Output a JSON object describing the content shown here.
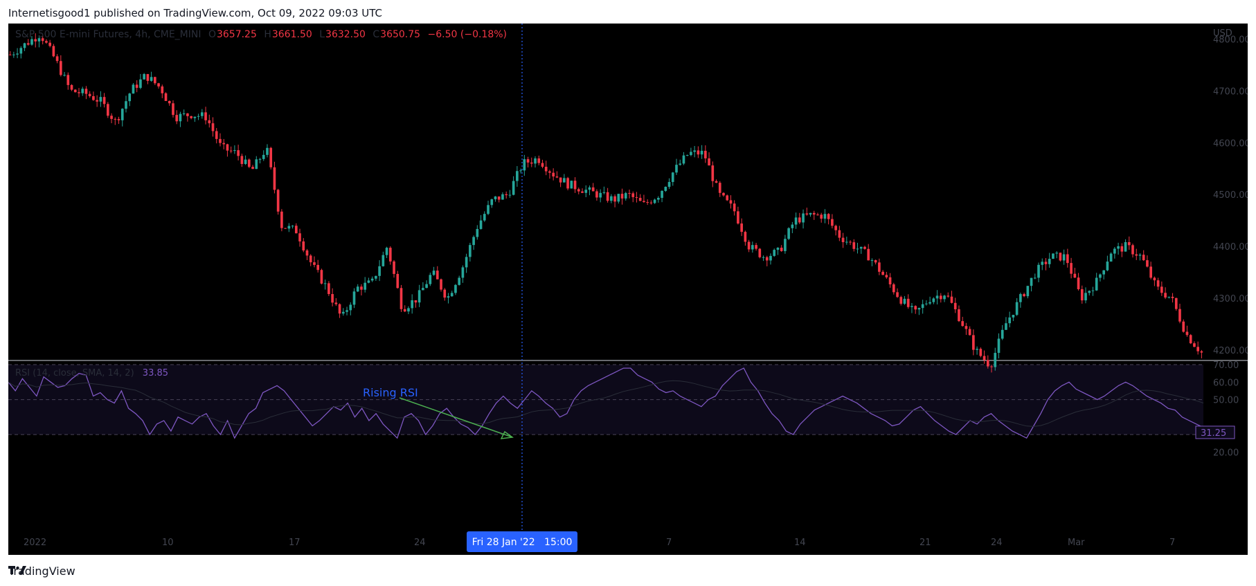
{
  "header": {
    "published": "Internetisgood1 published on TradingView.com, Oct 09, 2022 09:03 UTC"
  },
  "legend": {
    "symbol": "S&P 500 E-mini Futures, 4h, CME_MINI",
    "open_key": "O",
    "open": "3657.25",
    "high_key": "H",
    "high": "3661.50",
    "low_key": "L",
    "low": "3632.50",
    "close_key": "C",
    "close": "3650.75",
    "change": "−6.50 (−0.18%)"
  },
  "rsi_legend": {
    "label": "RSI (14, close, SMA, 14, 2)",
    "value": "33.85"
  },
  "crosshair_label": "Fri 28 Jan '22   15:00",
  "annotation": "Rising RSI",
  "footer": {
    "brand": "TradingView"
  },
  "colors": {
    "up": "#26a69a",
    "down": "#f23645",
    "rsi": "#7e57c2",
    "crosshair": "#2962ff",
    "annotation_text": "#2962ff",
    "arrow": "#4caf50"
  },
  "chart_data": [
    {
      "type": "candlestick",
      "currency": "USD",
      "ylim": [
        4180,
        4830
      ],
      "y_ticks": [
        "4800.00",
        "4700.00",
        "4600.00",
        "4500.00",
        "4400.00",
        "4300.00",
        "4200.00"
      ],
      "path_points": [
        4770,
        4790,
        4810,
        4760,
        4700,
        4695,
        4680,
        4640,
        4700,
        4730,
        4705,
        4650,
        4655,
        4650,
        4590,
        4580,
        4545,
        4590,
        4440,
        4430,
        4365,
        4320,
        4260,
        4320,
        4330,
        4400,
        4280,
        4300,
        4350,
        4300,
        4360,
        4440,
        4490,
        4500,
        4560,
        4570,
        4540,
        4520,
        4510,
        4500,
        4490,
        4500,
        4480,
        4500,
        4545,
        4580,
        4580,
        4500,
        4470,
        4400,
        4380,
        4390,
        4450,
        4460,
        4460,
        4420,
        4400,
        4380,
        4340,
        4300,
        4270,
        4300,
        4310,
        4260,
        4200,
        4170,
        4250,
        4300,
        4350,
        4380,
        4380,
        4300,
        4330,
        4390,
        4400,
        4380,
        4320,
        4300,
        4230,
        4195
      ]
    },
    {
      "type": "line",
      "name": "RSI",
      "ylim": [
        15,
        72
      ],
      "y_ticks": [
        "70.00",
        "60.00",
        "50.00",
        "20.00"
      ],
      "last_value": "31.25",
      "values": [
        60,
        55,
        62,
        57,
        52,
        63,
        60,
        57,
        58,
        62,
        65,
        64,
        52,
        54,
        50,
        48,
        55,
        45,
        42,
        38,
        30,
        36,
        38,
        32,
        40,
        38,
        36,
        40,
        42,
        35,
        30,
        38,
        28,
        35,
        42,
        45,
        54,
        56,
        58,
        55,
        50,
        45,
        40,
        35,
        38,
        42,
        46,
        44,
        48,
        40,
        45,
        38,
        42,
        36,
        32,
        28,
        40,
        42,
        38,
        30,
        35,
        42,
        45,
        40,
        36,
        34,
        30,
        35,
        42,
        48,
        52,
        48,
        45,
        50,
        55,
        52,
        48,
        45,
        40,
        42,
        50,
        55,
        58,
        60,
        62,
        64,
        66,
        68,
        68,
        64,
        62,
        60,
        56,
        54,
        55,
        52,
        50,
        48,
        46,
        50,
        52,
        58,
        62,
        66,
        68,
        60,
        55,
        48,
        42,
        38,
        32,
        30,
        36,
        40,
        44,
        46,
        48,
        50,
        52,
        50,
        48,
        45,
        42,
        40,
        38,
        35,
        36,
        40,
        44,
        46,
        42,
        38,
        35,
        32,
        30,
        34,
        38,
        36,
        40,
        42,
        38,
        35,
        32,
        30,
        28,
        35,
        42,
        50,
        55,
        58,
        60,
        56,
        54,
        52,
        50,
        52,
        55,
        58,
        60,
        58,
        55,
        52,
        50,
        48,
        45,
        44,
        40,
        38,
        36,
        34
      ]
    }
  ],
  "x_labels": [
    "2022",
    "10",
    "17",
    "24",
    "7",
    "14",
    "21",
    "24",
    "Mar",
    "7"
  ]
}
